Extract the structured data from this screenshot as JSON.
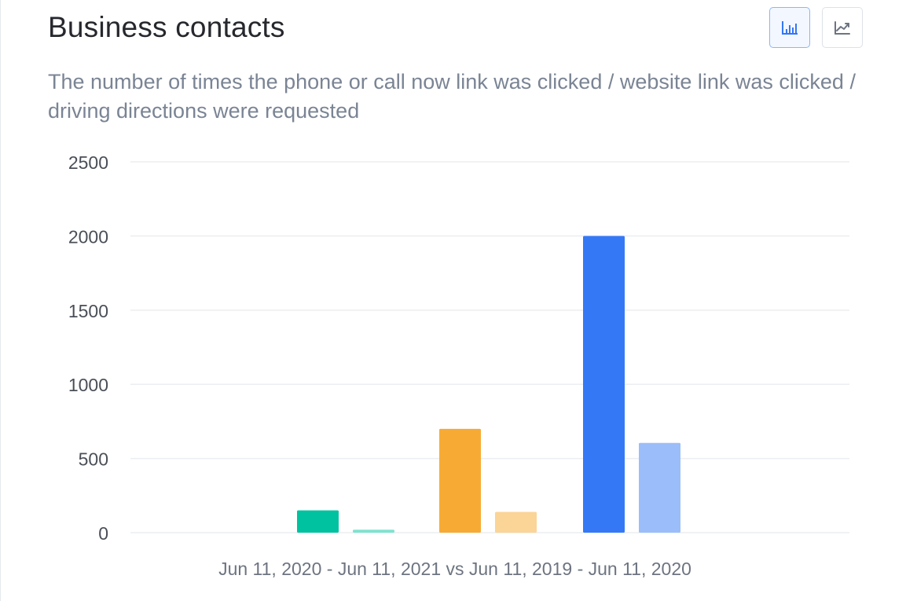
{
  "header": {
    "title": "Business contacts",
    "subtitle": "The number of times the phone or call now link was clicked / website link was clicked / driving directions were requested"
  },
  "controls": {
    "bar_view_icon": "bar-chart-icon",
    "line_view_icon": "line-chart-icon",
    "active_view": "bar"
  },
  "colors": {
    "accent": "#3478f6",
    "grid": "#eceef1",
    "tick_text": "#4a4f57",
    "caption_text": "#6d7480"
  },
  "chart_data": {
    "type": "bar",
    "ylim": [
      0,
      2500
    ],
    "yticks": [
      "0",
      "500",
      "1000",
      "1500",
      "2000",
      "2500"
    ],
    "grid": true,
    "caption": "Jun 11, 2020 - Jun 11, 2021 vs Jun 11, 2019 - Jun 11, 2020",
    "groups": [
      {
        "bars": [
          {
            "period": "Jun 11, 2020 - Jun 11, 2021",
            "value": 150,
            "color": "#00c2a0"
          },
          {
            "period": "Jun 11, 2019 - Jun 11, 2020",
            "value": 20,
            "color": "#7ee3d0"
          }
        ]
      },
      {
        "bars": [
          {
            "period": "Jun 11, 2020 - Jun 11, 2021",
            "value": 700,
            "color": "#f7ab35"
          },
          {
            "period": "Jun 11, 2019 - Jun 11, 2020",
            "value": 140,
            "color": "#fbd497"
          }
        ]
      },
      {
        "bars": [
          {
            "period": "Jun 11, 2020 - Jun 11, 2021",
            "value": 2000,
            "color": "#3478f6"
          },
          {
            "period": "Jun 11, 2019 - Jun 11, 2020",
            "value": 605,
            "color": "#9bbefa"
          }
        ]
      }
    ]
  }
}
